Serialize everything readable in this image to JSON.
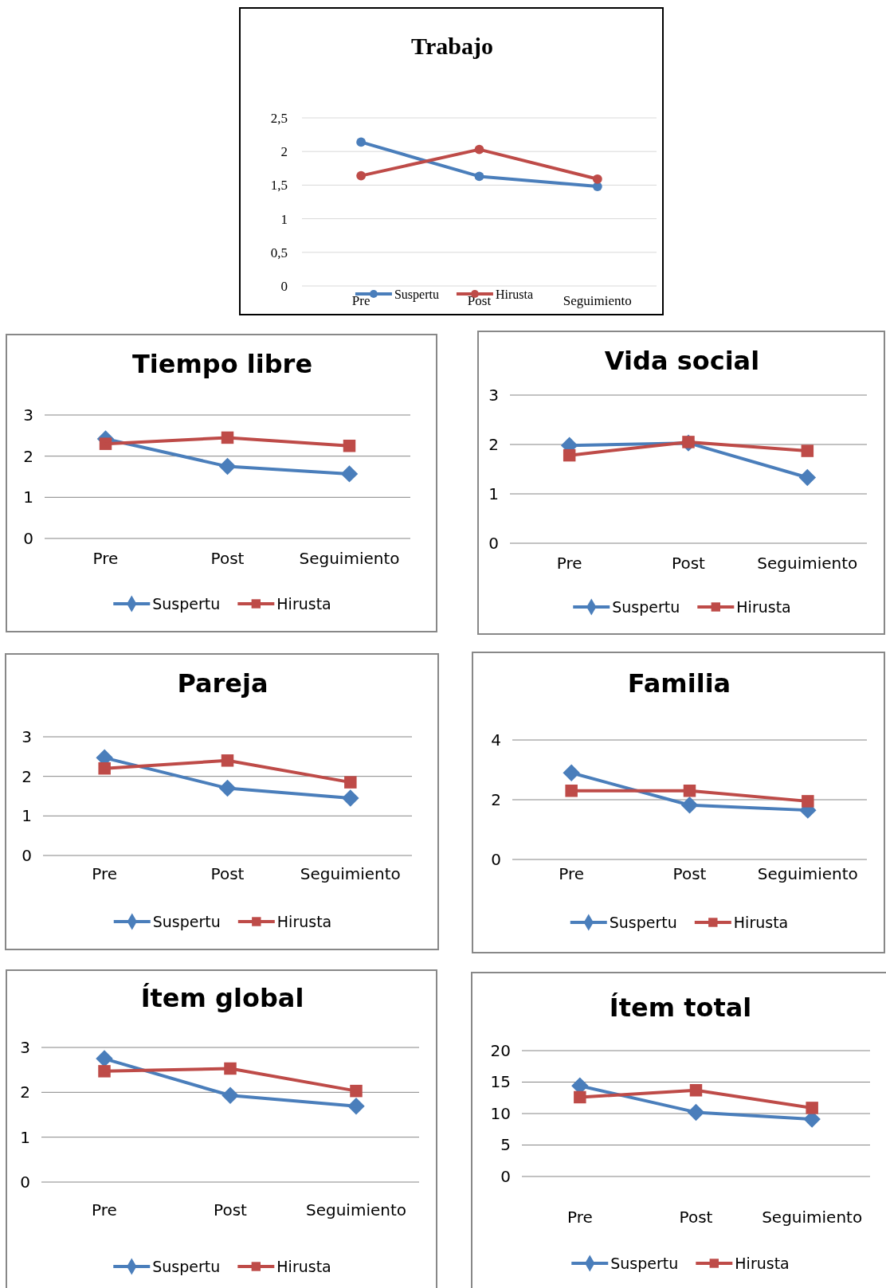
{
  "chart_data": [
    {
      "type": "line",
      "title": "Trabajo",
      "categories": [
        "Pre",
        "Post",
        "Seguimiento"
      ],
      "series": [
        {
          "name": "Suspertu",
          "color": "#4a7ebb",
          "marker": "circle",
          "values": [
            2.14,
            1.63,
            1.48
          ]
        },
        {
          "name": "Hirusta",
          "color": "#be4b48",
          "marker": "circle",
          "values": [
            1.64,
            2.03,
            1.59
          ]
        }
      ],
      "ylim": [
        0,
        2.5
      ],
      "yticks": [
        0,
        {
          "value": 0.5,
          "label": "0,5"
        },
        1,
        {
          "value": 1.5,
          "label": "1,5"
        },
        2,
        {
          "value": 2.5,
          "label": "2,5"
        }
      ],
      "grid": "y",
      "legend": "bottom"
    },
    {
      "type": "line",
      "title": "Tiempo libre",
      "categories": [
        "Pre",
        "Post",
        "Seguimiento"
      ],
      "series": [
        {
          "name": "Suspertu",
          "color": "#4a7ebb",
          "marker": "diamond",
          "values": [
            2.42,
            1.75,
            1.57
          ]
        },
        {
          "name": "Hirusta",
          "color": "#be4b48",
          "marker": "square",
          "values": [
            2.3,
            2.45,
            2.25
          ]
        }
      ],
      "ylim": [
        0,
        3
      ],
      "yticks": [
        0,
        1,
        2,
        3
      ],
      "grid": "y",
      "legend": "bottom"
    },
    {
      "type": "line",
      "title": "Vida social",
      "categories": [
        "Pre",
        "Post",
        "Seguimiento"
      ],
      "series": [
        {
          "name": "Suspertu",
          "color": "#4a7ebb",
          "marker": "diamond",
          "values": [
            1.98,
            2.03,
            1.33
          ]
        },
        {
          "name": "Hirusta",
          "color": "#be4b48",
          "marker": "square",
          "values": [
            1.78,
            2.05,
            1.87
          ]
        }
      ],
      "ylim": [
        0,
        3
      ],
      "yticks": [
        0,
        1,
        2,
        3
      ],
      "grid": "y",
      "legend": "bottom"
    },
    {
      "type": "line",
      "title": "Pareja",
      "categories": [
        "Pre",
        "Post",
        "Seguimiento"
      ],
      "series": [
        {
          "name": "Suspertu",
          "color": "#4a7ebb",
          "marker": "diamond",
          "values": [
            2.47,
            1.7,
            1.45
          ]
        },
        {
          "name": "Hirusta",
          "color": "#be4b48",
          "marker": "square",
          "values": [
            2.2,
            2.4,
            1.85
          ]
        }
      ],
      "ylim": [
        0,
        3
      ],
      "yticks": [
        0,
        1,
        2,
        3
      ],
      "grid": "y",
      "legend": "bottom"
    },
    {
      "type": "line",
      "title": "Familia",
      "categories": [
        "Pre",
        "Post",
        "Seguimiento"
      ],
      "series": [
        {
          "name": "Suspertu",
          "color": "#4a7ebb",
          "marker": "diamond",
          "values": [
            2.9,
            1.82,
            1.65
          ]
        },
        {
          "name": "Hirusta",
          "color": "#be4b48",
          "marker": "square",
          "values": [
            2.3,
            2.3,
            1.95
          ]
        }
      ],
      "ylim": [
        0,
        4
      ],
      "yticks": [
        0,
        2,
        4
      ],
      "grid": "y",
      "legend": "bottom"
    },
    {
      "type": "line",
      "title": "Ítem global",
      "categories": [
        "Pre",
        "Post",
        "Seguimiento"
      ],
      "series": [
        {
          "name": "Suspertu",
          "color": "#4a7ebb",
          "marker": "diamond",
          "values": [
            2.75,
            1.93,
            1.69
          ]
        },
        {
          "name": "Hirusta",
          "color": "#be4b48",
          "marker": "square",
          "values": [
            2.47,
            2.53,
            2.03
          ]
        }
      ],
      "ylim": [
        0,
        3
      ],
      "yticks": [
        0,
        1,
        2,
        3
      ],
      "grid": "y",
      "legend": "bottom"
    },
    {
      "type": "line",
      "title": "Ítem total",
      "categories": [
        "Pre",
        "Post",
        "Seguimiento"
      ],
      "series": [
        {
          "name": "Suspertu",
          "color": "#4a7ebb",
          "marker": "diamond",
          "values": [
            14.4,
            10.2,
            9.1
          ]
        },
        {
          "name": "Hirusta",
          "color": "#be4b48",
          "marker": "square",
          "values": [
            12.6,
            13.7,
            10.9
          ]
        }
      ],
      "ylim": [
        0,
        20
      ],
      "yticks": [
        0,
        5,
        10,
        15,
        20
      ],
      "grid": "y",
      "legend": "bottom"
    }
  ]
}
